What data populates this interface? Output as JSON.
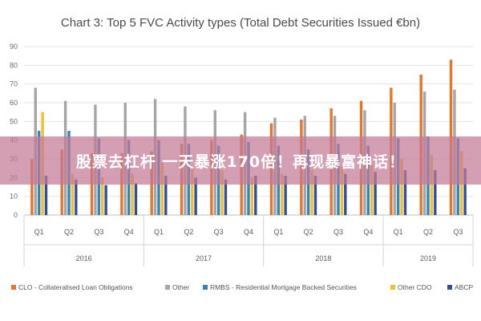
{
  "chart_data": {
    "type": "bar",
    "title": "Chart 3: Top 5 FVC Activity types (Total Debt Securities Issued €bn)",
    "xlabel": "",
    "ylabel": "",
    "ylim": [
      0,
      90
    ],
    "yticks": [
      0,
      10,
      20,
      30,
      40,
      50,
      60,
      70,
      80,
      90
    ],
    "grid": true,
    "legend_position": "bottom",
    "categories": [
      "Q1",
      "Q2",
      "Q3",
      "Q4",
      "Q1",
      "Q2",
      "Q3",
      "Q4",
      "Q1",
      "Q2",
      "Q3",
      "Q4",
      "Q1",
      "Q2",
      "Q3"
    ],
    "year_groups": [
      {
        "label": "2016",
        "count": 4
      },
      {
        "label": "2017",
        "count": 4
      },
      {
        "label": "2018",
        "count": 4
      },
      {
        "label": "2019",
        "count": 3
      }
    ],
    "series": [
      {
        "name": "CLO - Collateralised Loan Obligations",
        "color": "#e8732a",
        "values": [
          30,
          35,
          33,
          33,
          34,
          38,
          40,
          43,
          49,
          51,
          57,
          61,
          68,
          75,
          83
        ]
      },
      {
        "name": "Other",
        "color": "#a5a5a5",
        "values": [
          68,
          61,
          59,
          60,
          62,
          58,
          56,
          55,
          52,
          53,
          53,
          56,
          60,
          66,
          67
        ]
      },
      {
        "name": "RMBS - Residential Mortgage Backed Securities",
        "color": "#2e86c1",
        "values": [
          45,
          45,
          41,
          40,
          40,
          38,
          37,
          39,
          37,
          35,
          38,
          37,
          41,
          42,
          41
        ]
      },
      {
        "name": "Other CDO",
        "color": "#f5bd2c",
        "values": [
          55,
          22,
          20,
          22,
          28,
          25,
          24,
          20,
          22,
          24,
          26,
          27,
          30,
          32,
          34
        ]
      },
      {
        "name": "ABCP",
        "color": "#2d4f9e",
        "values": [
          21,
          19,
          16,
          17,
          21,
          20,
          19,
          21,
          21,
          21,
          22,
          23,
          24,
          24,
          25
        ]
      }
    ]
  },
  "banner": {
    "text": "股票去杠杆 一天暴涨170倍！再现暴富神话！"
  }
}
